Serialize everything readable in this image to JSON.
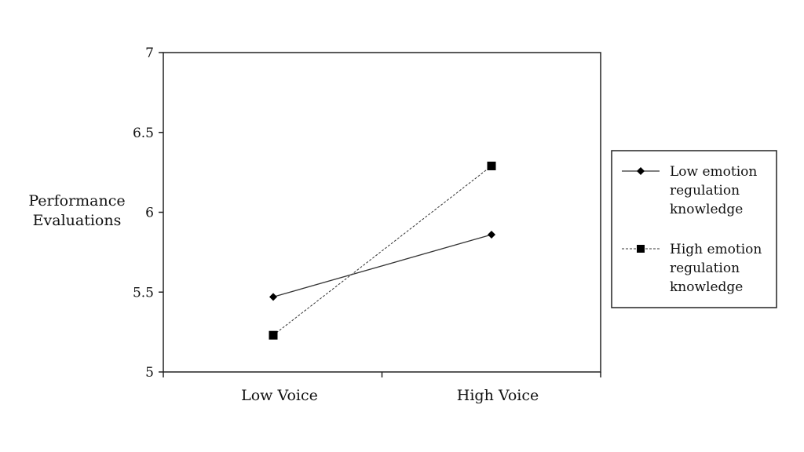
{
  "chart_data": {
    "type": "line",
    "title": "",
    "xlabel": "",
    "ylabel_lines": [
      "Performance",
      "Evaluations"
    ],
    "categories": [
      "Low Voice",
      "High Voice"
    ],
    "ylim": [
      5,
      7
    ],
    "yticks": [
      "5",
      "5.5",
      "6",
      "6.5",
      "7"
    ],
    "legend_position": "right",
    "series": [
      {
        "name_lines": [
          "Low emotion",
          "regulation",
          "knowledge"
        ],
        "values": [
          5.47,
          5.86
        ],
        "marker": "diamond",
        "line_style": "solid",
        "color": "#333333"
      },
      {
        "name_lines": [
          "High emotion",
          "regulation",
          "knowledge"
        ],
        "values": [
          5.23,
          6.29
        ],
        "marker": "square",
        "line_style": "dashed",
        "color": "#333333"
      }
    ]
  }
}
